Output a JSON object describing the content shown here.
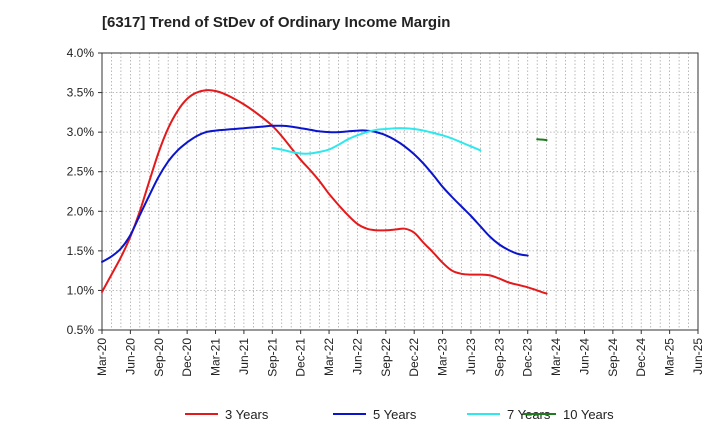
{
  "chart_data": {
    "type": "line",
    "title": "[6317]  Trend of StDev of Ordinary Income Margin",
    "xlabel": "",
    "ylabel": "",
    "ylim": [
      0.5,
      4.0
    ],
    "yticks": [
      0.5,
      1.0,
      1.5,
      2.0,
      2.5,
      3.0,
      3.5,
      4.0
    ],
    "ytick_labels": [
      "0.5%",
      "1.0%",
      "1.5%",
      "2.0%",
      "2.5%",
      "3.0%",
      "3.5%",
      "4.0%"
    ],
    "xtick_labels": [
      "Mar-20",
      "Jun-20",
      "Sep-20",
      "Dec-20",
      "Mar-21",
      "Jun-21",
      "Sep-21",
      "Dec-21",
      "Mar-22",
      "Jun-22",
      "Sep-22",
      "Dec-22",
      "Mar-23",
      "Jun-23",
      "Sep-23",
      "Dec-23",
      "Mar-24",
      "Jun-24",
      "Sep-24",
      "Dec-24",
      "Mar-25",
      "Jun-25"
    ],
    "grid": true,
    "legend_position": "bottom",
    "series": [
      {
        "name": "3 Years",
        "color": "#e31a1c",
        "start_month_index": 0,
        "values": [
          0.98,
          1.2,
          1.42,
          1.68,
          2.0,
          2.38,
          2.75,
          3.05,
          3.27,
          3.42,
          3.5,
          3.53,
          3.52,
          3.48,
          3.42,
          3.35,
          3.27,
          3.18,
          3.08,
          2.95,
          2.8,
          2.65,
          2.52,
          2.38,
          2.22,
          2.08,
          1.95,
          1.84,
          1.78,
          1.76,
          1.76,
          1.77,
          1.78,
          1.73,
          1.6,
          1.48,
          1.35,
          1.25,
          1.21,
          1.2,
          1.2,
          1.19,
          1.15,
          1.1,
          1.07,
          1.04,
          1.0,
          0.96
        ]
      },
      {
        "name": "5 Years",
        "color": "#0a14cc",
        "start_month_index": 0,
        "values": [
          1.36,
          1.43,
          1.53,
          1.7,
          1.95,
          2.2,
          2.44,
          2.63,
          2.77,
          2.87,
          2.95,
          3.0,
          3.02,
          3.03,
          3.04,
          3.05,
          3.06,
          3.07,
          3.08,
          3.08,
          3.07,
          3.05,
          3.03,
          3.01,
          3.0,
          3.0,
          3.01,
          3.02,
          3.02,
          3.0,
          2.96,
          2.9,
          2.82,
          2.72,
          2.6,
          2.46,
          2.31,
          2.18,
          2.06,
          1.94,
          1.81,
          1.68,
          1.58,
          1.51,
          1.46,
          1.44
        ]
      },
      {
        "name": "7 Years",
        "color": "#2ee8ee",
        "start_month_index": 18,
        "values": [
          2.8,
          2.78,
          2.75,
          2.73,
          2.73,
          2.75,
          2.78,
          2.84,
          2.91,
          2.96,
          3.0,
          3.03,
          3.04,
          3.05,
          3.05,
          3.04,
          3.02,
          2.99,
          2.96,
          2.92,
          2.87,
          2.82,
          2.77
        ]
      },
      {
        "name": "10 Years",
        "color": "#1e7b1e",
        "start_month_index": 46,
        "values": [
          2.91,
          2.9
        ]
      }
    ]
  }
}
